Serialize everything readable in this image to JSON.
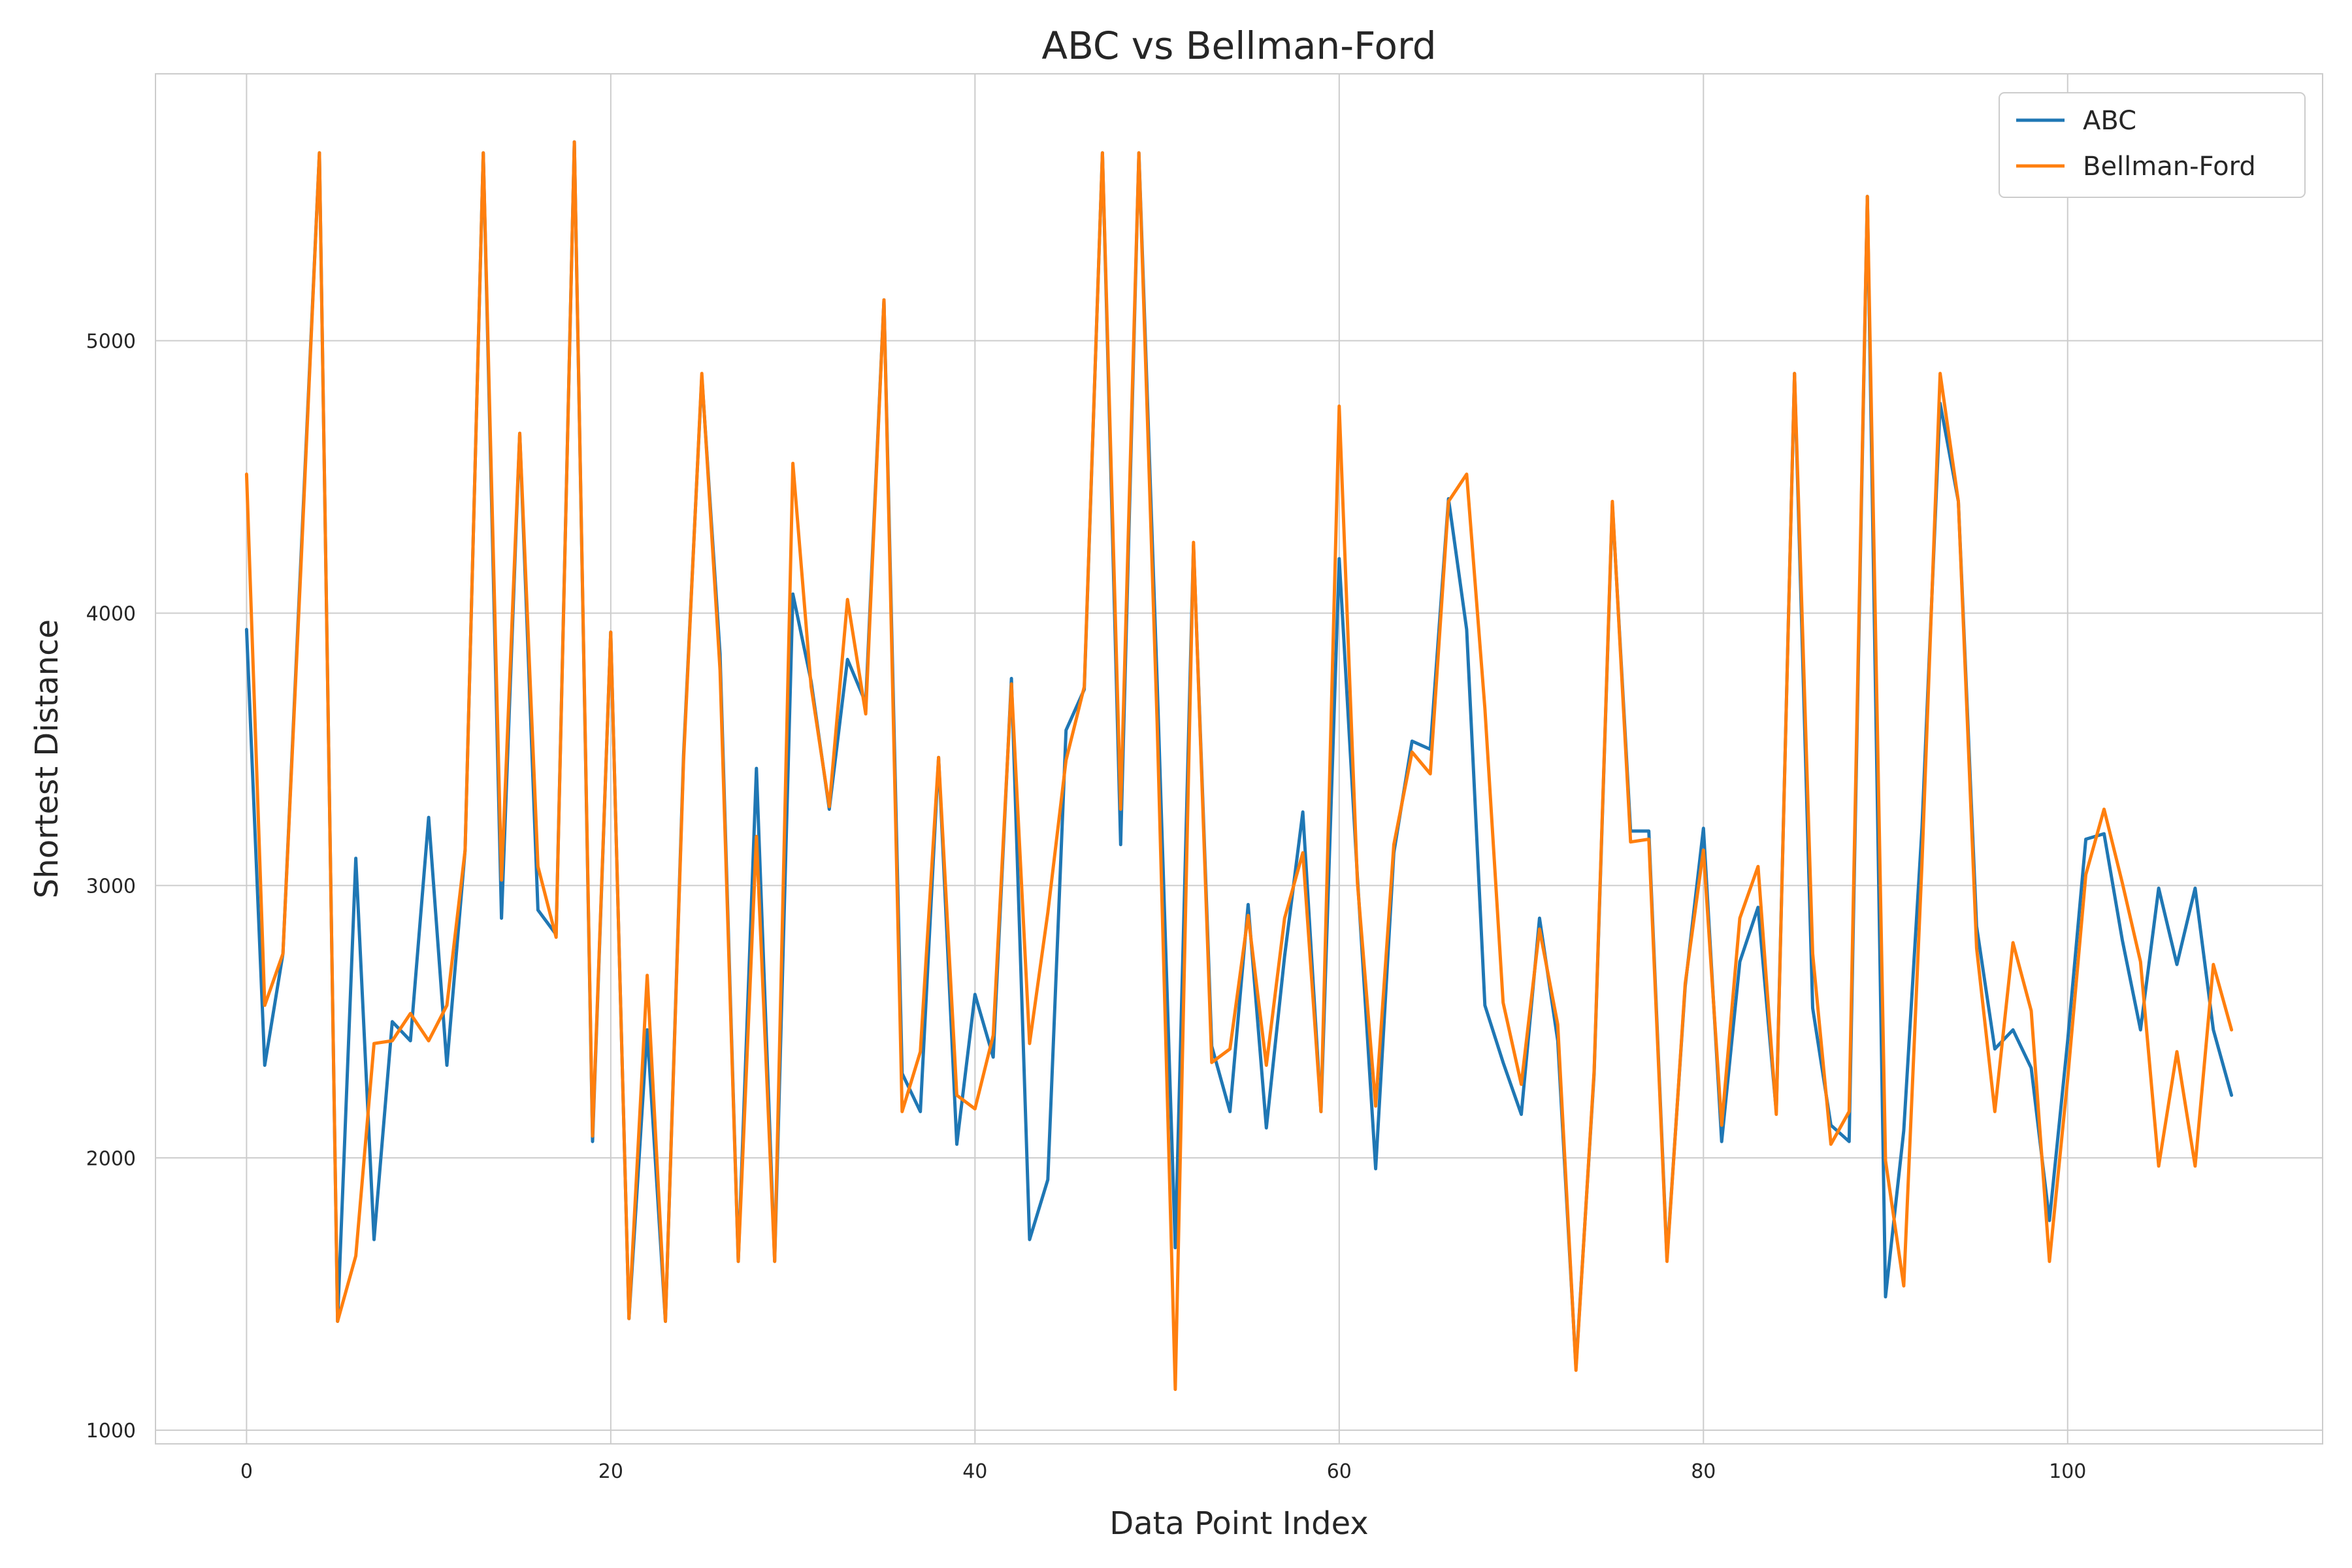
{
  "chart_data": {
    "type": "line",
    "title": "ABC vs Bellman-Ford",
    "xlabel": "Data Point Index",
    "ylabel": "Shortest Distance",
    "xlim": [
      -5,
      114
    ],
    "ylim": [
      950,
      5980
    ],
    "x_ticks": [
      0,
      20,
      40,
      60,
      80,
      100
    ],
    "y_ticks": [
      1000,
      2000,
      3000,
      4000,
      5000
    ],
    "grid": true,
    "legend_position": "top-right",
    "series": [
      {
        "name": "ABC",
        "color": "#1f77b4",
        "values": [
          3940,
          2340,
          2750,
          4220,
          5690,
          1400,
          3100,
          1700,
          2500,
          2430,
          3250,
          2340,
          3130,
          5690,
          2880,
          4660,
          2910,
          2820,
          5730,
          2060,
          3930,
          1410,
          2470,
          1400,
          3480,
          4870,
          3850,
          1620,
          3430,
          1620,
          4070,
          3750,
          3280,
          3830,
          3670,
          5150,
          2310,
          2170,
          3470,
          2050,
          2600,
          2370,
          3760,
          1700,
          1920,
          3570,
          3720,
          5690,
          3150,
          5690,
          3750,
          1670,
          4250,
          2410,
          2170,
          2930,
          2110,
          2740,
          3270,
          2170,
          4200,
          3030,
          1960,
          3120,
          3530,
          3500,
          4420,
          3940,
          2560,
          2350,
          2160,
          2880,
          2430,
          1230,
          2310,
          4400,
          3200,
          3200,
          1630,
          2630,
          3210,
          2060,
          2720,
          2920,
          2170,
          4880,
          2550,
          2120,
          2060,
          5530,
          1490,
          2100,
          3210,
          4770,
          4410,
          2850,
          2400,
          2470,
          2330,
          1770,
          2430,
          3170,
          3190,
          2800,
          2470,
          2990,
          2710,
          2990,
          2470,
          2230
        ]
      },
      {
        "name": "Bellman-Ford",
        "color": "#ff7f0e",
        "values": [
          4510,
          2560,
          2750,
          4190,
          5690,
          1400,
          1640,
          2420,
          2430,
          2530,
          2430,
          2560,
          3130,
          5690,
          3020,
          4660,
          3070,
          2810,
          5730,
          2080,
          3930,
          1410,
          2670,
          1400,
          3460,
          4880,
          3790,
          1620,
          3180,
          1620,
          4550,
          3730,
          3290,
          4050,
          3630,
          5150,
          2170,
          2390,
          3470,
          2230,
          2180,
          2450,
          3740,
          2420,
          2900,
          3460,
          3730,
          5690,
          3280,
          5690,
          3600,
          1150,
          4260,
          2350,
          2400,
          2890,
          2340,
          2880,
          3120,
          2170,
          4760,
          3010,
          2190,
          3150,
          3490,
          3410,
          4410,
          4510,
          3650,
          2570,
          2270,
          2840,
          2490,
          1220,
          2320,
          4410,
          3160,
          3170,
          1620,
          2640,
          3130,
          2120,
          2880,
          3070,
          2160,
          4880,
          2750,
          2050,
          2170,
          5530,
          1990,
          1530,
          3080,
          4880,
          4410,
          2770,
          2170,
          2790,
          2540,
          1620,
          2290,
          3040,
          3280,
          3010,
          2720,
          1970,
          2390,
          1970,
          2710,
          2470
        ]
      }
    ]
  }
}
